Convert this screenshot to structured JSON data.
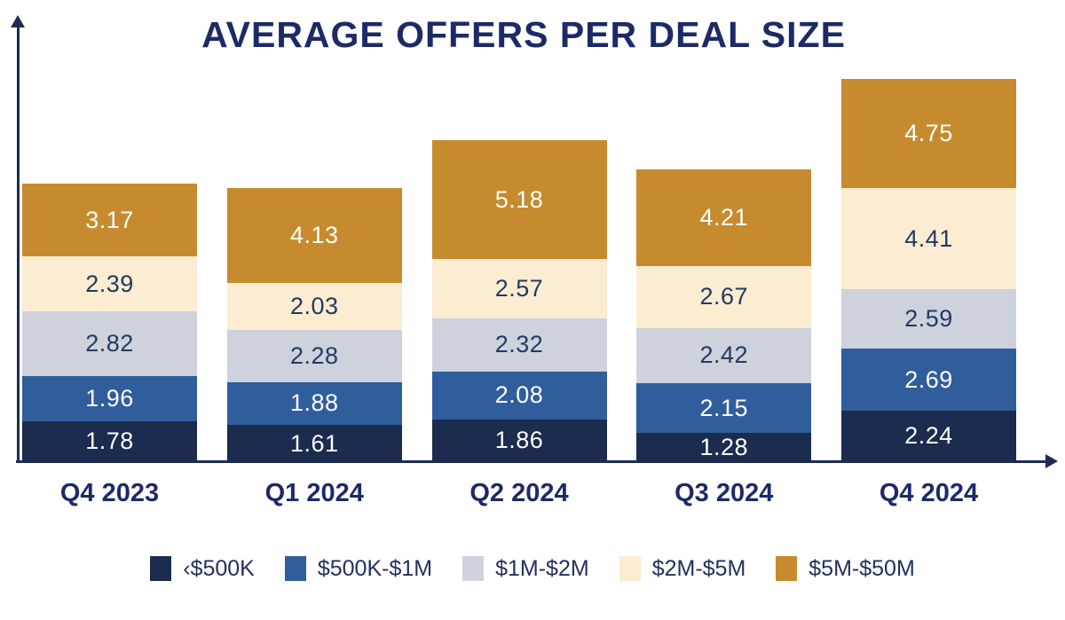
{
  "title": "AVERAGE OFFERS PER DEAL SIZE",
  "colors": {
    "background": "#ffffff",
    "title": "#1d2a67",
    "axis": "#1e2c52",
    "tick_label": "#1d2a67",
    "legend_text": "#21315e"
  },
  "chart_data": {
    "type": "bar",
    "stacked": true,
    "title": "AVERAGE OFFERS PER DEAL SIZE",
    "categories": [
      "Q4 2023",
      "Q1 2024",
      "Q2 2024",
      "Q3 2024",
      "Q4 2024"
    ],
    "series": [
      {
        "name": "‹$500K",
        "color": "#1b2c4e",
        "label_color": "#ffffff",
        "values": [
          1.78,
          1.61,
          1.86,
          1.28,
          2.24
        ]
      },
      {
        "name": "$500K-$1M",
        "color": "#305e9c",
        "label_color": "#ffffff",
        "values": [
          1.96,
          1.88,
          2.08,
          2.15,
          2.69
        ]
      },
      {
        "name": "$1M-$2M",
        "color": "#cdd2dc",
        "label_color": "#233a61",
        "values": [
          2.82,
          2.28,
          2.32,
          2.42,
          2.59
        ]
      },
      {
        "name": "$2M-$5M",
        "color": "#fcecd1",
        "label_color": "#233a61",
        "values": [
          2.39,
          2.03,
          2.57,
          2.67,
          4.41
        ]
      },
      {
        "name": "$5M-$50M",
        "color": "#c68b2e",
        "label_color": "#ffffff",
        "values": [
          3.17,
          4.13,
          5.18,
          4.21,
          4.75
        ]
      }
    ],
    "xlabel": "",
    "ylabel": "",
    "ylim": [
      0,
      17
    ],
    "grid": false,
    "legend_position": "bottom",
    "value_labels": "inside"
  }
}
